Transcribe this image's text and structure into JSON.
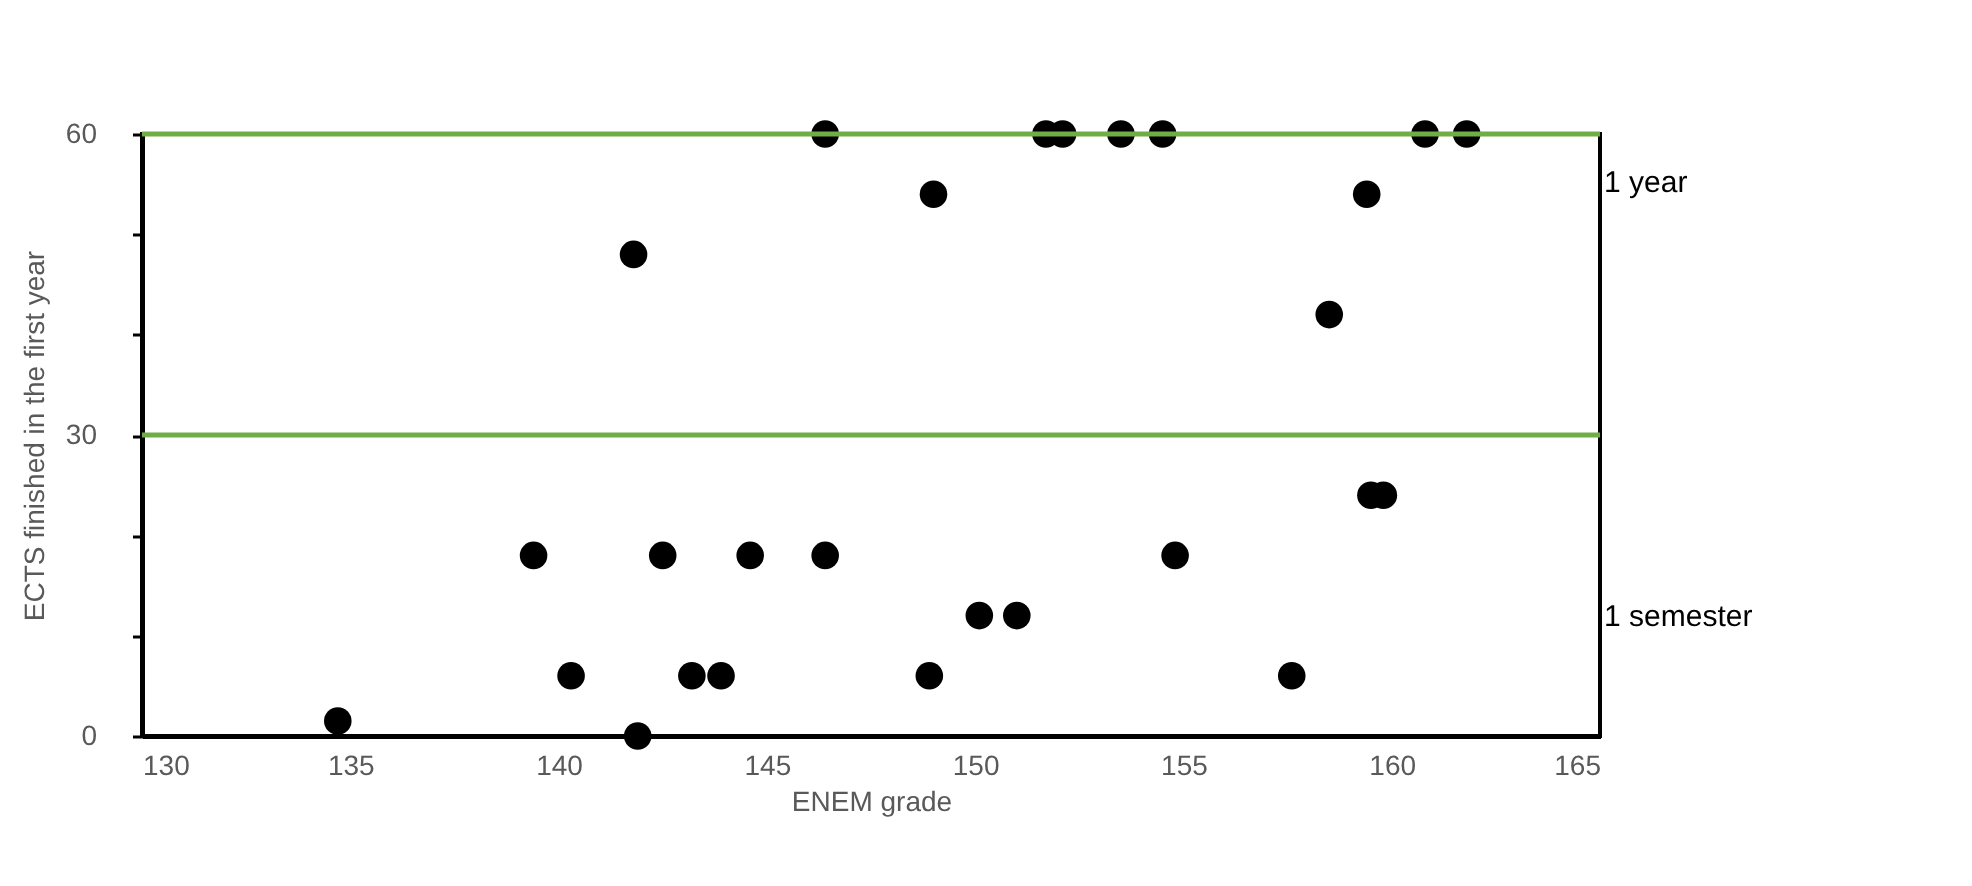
{
  "chart_data": {
    "type": "scatter",
    "xlabel": "ENEM grade",
    "ylabel": "ECTS finished in the first year",
    "x": [
      134.7,
      141.8,
      146.4,
      139.4,
      142.5,
      144.6,
      146.4,
      140.3,
      143.2,
      143.9,
      141.9,
      151.7,
      152.1,
      153.5,
      154.5,
      160.8,
      161.8,
      149.0,
      159.4,
      158.5,
      159.5,
      159.8,
      154.8,
      150.1,
      151.0,
      148.9,
      157.6
    ],
    "series": [
      {
        "color": "#000000",
        "values": [
          1.5,
          48,
          60,
          18,
          18,
          18,
          18,
          6,
          6,
          6,
          0,
          60,
          60,
          60,
          60,
          60,
          60,
          54,
          54,
          42,
          24,
          24,
          18,
          12,
          12,
          6,
          6
        ]
      }
    ],
    "xlim": [
      130,
      165
    ],
    "xticks": [
      130,
      135,
      140,
      145,
      150,
      155,
      160,
      165
    ],
    "ylim": [
      0,
      60
    ],
    "yticks": [
      0,
      {
        "value": 10,
        "label": null
      },
      {
        "value": 20,
        "label": null
      },
      30,
      {
        "value": 40,
        "label": null
      },
      {
        "value": 50,
        "label": null
      },
      60
    ],
    "ref_lines": [
      {
        "axis": "y",
        "value": 30,
        "color": "#70ad47"
      },
      {
        "axis": "y",
        "value": 60,
        "color": "#70ad47"
      }
    ],
    "annotations": [
      "1 year",
      "1 semester"
    ],
    "marker": "circle",
    "grid": false
  }
}
